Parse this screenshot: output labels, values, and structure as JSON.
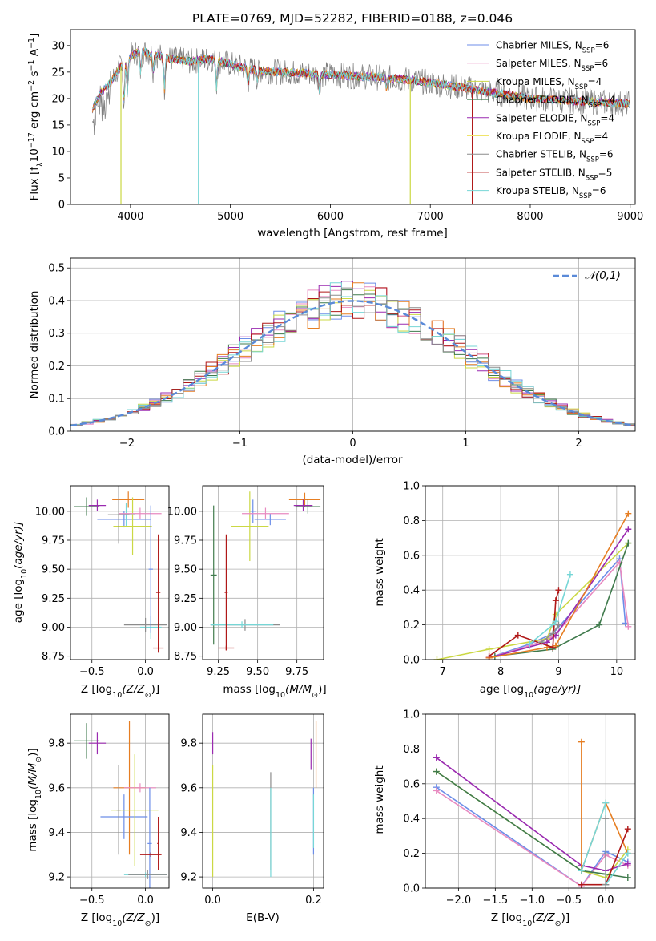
{
  "title": "PLATE=0769, MJD=52282, FIBERID=0188, z=0.046",
  "colors": {
    "Chabrier MILES": "#6c8ee8",
    "Salpeter MILES": "#e88ac0",
    "Kroupa MILES": "#cbd844",
    "Chabrier ELODIE": "#3f7a4c",
    "Salpeter ELODIE": "#9a2ab0",
    "Kroupa ELODIE": "#f0e46a",
    "Chabrier STELIB": "#8c8c8c",
    "Salpeter STELIB": "#b01818",
    "Kroupa STELIB": "#76d6d6",
    "orange": "#e67e22"
  },
  "chart_data": [
    {
      "type": "line",
      "id": "spectrum",
      "title": "PLATE=0769, MJD=52282, FIBERID=0188, z=0.046",
      "xlabel": "wavelength [Angstrom, rest frame]",
      "ylabel_main": "Flux [f",
      "ylabel_sub": "λ",
      "ylabel_rest": "10",
      "ylabel_exp": "−17",
      "ylabel_units": " erg cm",
      "ylabel_exp2": "−2",
      "ylabel_s": " s",
      "ylabel_exp3": "−1",
      "ylabel_A": " A",
      "ylabel_exp4": "−1",
      "ylabel_end": "]",
      "xlim": [
        3400,
        9050
      ],
      "ylim": [
        0,
        33
      ],
      "xticks": [
        "4000",
        "5000",
        "6000",
        "7000",
        "8000",
        "9000"
      ],
      "yticks": [
        "0",
        "5",
        "10",
        "15",
        "20",
        "25",
        "30"
      ],
      "legend": [
        {
          "name": "Chabrier MILES",
          "nssp": "6"
        },
        {
          "name": "Salpeter MILES",
          "nssp": "6"
        },
        {
          "name": "Kroupa MILES",
          "nssp": "4"
        },
        {
          "name": "Chabrier ELODIE",
          "nssp": "4"
        },
        {
          "name": "Salpeter ELODIE",
          "nssp": "4"
        },
        {
          "name": "Kroupa ELODIE",
          "nssp": "4"
        },
        {
          "name": "Chabrier STELIB",
          "nssp": "6"
        },
        {
          "name": "Salpeter STELIB",
          "nssp": "5"
        },
        {
          "name": "Kroupa STELIB",
          "nssp": "6"
        }
      ],
      "legend_prefix": "N",
      "legend_sub": "SSP",
      "legend_placement": "upper right",
      "continuum": [
        [
          3620,
          18
        ],
        [
          3700,
          21
        ],
        [
          3800,
          23
        ],
        [
          3900,
          26
        ],
        [
          4000,
          28
        ],
        [
          4100,
          29
        ],
        [
          4200,
          28.5
        ],
        [
          4400,
          27.5
        ],
        [
          4600,
          27
        ],
        [
          4800,
          27.5
        ],
        [
          5000,
          26.5
        ],
        [
          5200,
          25.5
        ],
        [
          5500,
          25
        ],
        [
          6000,
          24.5
        ],
        [
          6500,
          24
        ],
        [
          6800,
          23.5
        ],
        [
          7000,
          23
        ],
        [
          7500,
          21.5
        ],
        [
          8000,
          20
        ],
        [
          8500,
          19.5
        ],
        [
          8990,
          19
        ]
      ]
    },
    {
      "type": "histogram",
      "id": "residuals",
      "xlabel": "(data-model)/error",
      "ylabel": "Normed distribution",
      "xlim": [
        -2.5,
        2.5
      ],
      "ylim": [
        0,
        0.53
      ],
      "xticks": [
        "−2",
        "−1",
        "0",
        "1",
        "2"
      ],
      "yticks": [
        "0.0",
        "0.1",
        "0.2",
        "0.3",
        "0.4",
        "0.5"
      ],
      "legend": "𝒩(0,1)",
      "legend_placement": "upper right",
      "grid": true
    },
    {
      "type": "scatter",
      "id": "age_vs_Z",
      "xlabel": "Z [log",
      "xlabel_sub": "10",
      "xlabel_rest": "(Z/Z",
      "xlabel_end": ")]",
      "ylabel": "age  [log",
      "ylabel_sub": "10",
      "ylabel_rest": "(age/yr)]",
      "xlim": [
        -0.7,
        0.22
      ],
      "ylim": [
        8.72,
        10.22
      ],
      "xticks": [
        "−0.5",
        "0.0"
      ],
      "yticks": [
        "8.75",
        "9.00",
        "9.25",
        "9.50",
        "9.75",
        "10.00"
      ],
      "grid": true,
      "points": [
        {
          "c": "Chabrier ELODIE",
          "x": -0.55,
          "y": 10.04,
          "xe": 0.12,
          "ye": 0.08
        },
        {
          "c": "Salpeter ELODIE",
          "x": -0.45,
          "y": 10.05,
          "xe": 0.08,
          "ye": 0.05
        },
        {
          "c": "orange",
          "x": -0.16,
          "y": 10.1,
          "xe": 0.15,
          "ye": 0.07
        },
        {
          "c": "Chabrier MILES",
          "x": -0.2,
          "y": 9.93,
          "xe": 0.25,
          "ye": 0.07
        },
        {
          "c": "Kroupa STELIB",
          "x": -0.18,
          "y": 9.97,
          "xe": 0.08,
          "ye": 0.1
        },
        {
          "c": "Kroupa MILES",
          "x": -0.12,
          "y": 9.87,
          "xe": 0.18,
          "ye": 0.25
        },
        {
          "c": "Chabrier STELIB",
          "x": -0.25,
          "y": 9.97,
          "xe": 0.1,
          "ye": 0.25
        },
        {
          "c": "Salpeter MILES",
          "x": -0.05,
          "y": 9.98,
          "xe": 0.2,
          "ye": 0.05
        },
        {
          "c": "Kroupa STELIB",
          "x": 0.05,
          "y": 9.0,
          "xe": 0.1,
          "ye": 0.1
        },
        {
          "c": "Chabrier STELIB",
          "x": 0.0,
          "y": 9.02,
          "xe": 0.2,
          "ye": 0.06
        },
        {
          "c": "Chabrier MILES",
          "x": 0.05,
          "y": 9.5,
          "xe": 0.02,
          "ye": 0.55
        },
        {
          "c": "Salpeter STELIB",
          "x": 0.12,
          "y": 8.82,
          "xe": 0.05,
          "ye": 0.04
        },
        {
          "c": "Salpeter STELIB",
          "x": 0.12,
          "y": 9.3,
          "xe": 0.02,
          "ye": 0.5
        }
      ]
    },
    {
      "type": "scatter",
      "id": "age_vs_mass",
      "xlabel": "mass [log",
      "xlabel_sub": "10",
      "xlabel_rest": "(M/M",
      "xlabel_end": ")]",
      "xlim": [
        9.15,
        9.92
      ],
      "ylim": [
        8.72,
        10.22
      ],
      "xticks": [
        "9.25",
        "9.50",
        "9.75"
      ],
      "yticks": [
        "8.75",
        "9.00",
        "9.25",
        "9.50",
        "9.75",
        "10.00"
      ],
      "grid": true,
      "points": [
        {
          "c": "orange",
          "x": 9.8,
          "y": 10.1,
          "xe": 0.1,
          "ye": 0.06
        },
        {
          "c": "Chabrier ELODIE",
          "x": 9.82,
          "y": 10.04,
          "xe": 0.08,
          "ye": 0.06
        },
        {
          "c": "Salpeter ELODIE",
          "x": 9.79,
          "y": 10.05,
          "xe": 0.06,
          "ye": 0.05
        },
        {
          "c": "Chabrier MILES",
          "x": 9.58,
          "y": 9.93,
          "xe": 0.1,
          "ye": 0.05
        },
        {
          "c": "Chabrier MILES",
          "x": 9.47,
          "y": 10.0,
          "xe": 0.02,
          "ye": 0.1
        },
        {
          "c": "Kroupa MILES",
          "x": 9.45,
          "y": 9.87,
          "xe": 0.12,
          "ye": 0.3
        },
        {
          "c": "Salpeter MILES",
          "x": 9.55,
          "y": 9.98,
          "xe": 0.15,
          "ye": 0.05
        },
        {
          "c": "Chabrier ELODIE",
          "x": 9.22,
          "y": 9.45,
          "xe": 0.02,
          "ye": 0.6
        },
        {
          "c": "Chabrier STELIB",
          "x": 9.42,
          "y": 9.02,
          "xe": 0.22,
          "ye": 0.05
        },
        {
          "c": "Kroupa STELIB",
          "x": 9.4,
          "y": 9.02,
          "xe": 0.2,
          "ye": 0.03
        },
        {
          "c": "Salpeter STELIB",
          "x": 9.3,
          "y": 8.82,
          "xe": 0.05,
          "ye": 0.02
        },
        {
          "c": "Salpeter STELIB",
          "x": 9.3,
          "y": 9.3,
          "xe": 0.01,
          "ye": 0.5
        }
      ]
    },
    {
      "type": "line",
      "id": "massweight_vs_age",
      "xlabel": "age  [log",
      "xlabel_sub": "10",
      "xlabel_rest": "(age/yr)]",
      "ylabel": "mass weight",
      "xlim": [
        6.7,
        10.32
      ],
      "ylim": [
        0,
        1
      ],
      "xticks": [
        "7",
        "8",
        "9",
        "10"
      ],
      "yticks": [
        "0.0",
        "0.2",
        "0.4",
        "0.6",
        "0.8",
        "1.0"
      ],
      "grid": true,
      "series": [
        {
          "c": "Chabrier MILES",
          "x": [
            7.8,
            8.5,
            8.9,
            10.05,
            10.15
          ],
          "y": [
            0.01,
            0.09,
            0.15,
            0.58,
            0.21
          ]
        },
        {
          "c": "Salpeter MILES",
          "x": [
            7.8,
            8.5,
            8.9,
            10.05,
            10.2
          ],
          "y": [
            0.01,
            0.08,
            0.13,
            0.56,
            0.19
          ]
        },
        {
          "c": "Kroupa MILES",
          "x": [
            6.9,
            7.8,
            8.8,
            8.95,
            10.2
          ],
          "y": [
            0.0,
            0.06,
            0.12,
            0.26,
            0.67
          ]
        },
        {
          "c": "Chabrier ELODIE",
          "x": [
            7.9,
            8.9,
            9.7,
            10.2
          ],
          "y": [
            0.02,
            0.06,
            0.2,
            0.67
          ]
        },
        {
          "c": "Salpeter ELODIE",
          "x": [
            7.8,
            8.8,
            8.95,
            10.2
          ],
          "y": [
            0.01,
            0.1,
            0.14,
            0.75
          ]
        },
        {
          "c": "orange",
          "x": [
            7.8,
            8.8,
            8.95,
            10.2
          ],
          "y": [
            0.01,
            0.07,
            0.08,
            0.84
          ]
        },
        {
          "c": "Salpeter STELIB",
          "x": [
            7.8,
            8.3,
            8.9,
            8.95,
            9.0
          ],
          "y": [
            0.02,
            0.14,
            0.07,
            0.34,
            0.4
          ]
        },
        {
          "c": "Kroupa STELIB",
          "x": [
            8.5,
            8.9,
            8.95,
            9.2
          ],
          "y": [
            0.09,
            0.2,
            0.22,
            0.49
          ]
        },
        {
          "c": "Chabrier STELIB",
          "x": [
            8.7,
            8.9,
            9.0
          ],
          "y": [
            0.1,
            0.15,
            0.2
          ]
        }
      ]
    },
    {
      "type": "scatter",
      "id": "mass_vs_Z",
      "xlabel": "Z [log",
      "xlabel_sub": "10",
      "xlabel_rest": "(Z/Z",
      "xlabel_end": ")]",
      "ylabel": "mass [log",
      "ylabel_sub": "10",
      "ylabel_rest": "(M/M",
      "ylabel_end": ")]",
      "xlim": [
        -0.7,
        0.22
      ],
      "ylim": [
        9.15,
        9.93
      ],
      "xticks": [
        "−0.5",
        "0.0"
      ],
      "yticks": [
        "9.2",
        "9.4",
        "9.6",
        "9.8"
      ],
      "grid": true,
      "points": [
        {
          "c": "Chabrier ELODIE",
          "x": -0.55,
          "y": 9.81,
          "xe": 0.12,
          "ye": 0.08
        },
        {
          "c": "Salpeter ELODIE",
          "x": -0.45,
          "y": 9.8,
          "xe": 0.08,
          "ye": 0.05
        },
        {
          "c": "orange",
          "x": -0.15,
          "y": 9.6,
          "xe": 0.15,
          "ye": 0.3
        },
        {
          "c": "Chabrier MILES",
          "x": -0.2,
          "y": 9.47,
          "xe": 0.22,
          "ye": 0.1
        },
        {
          "c": "Kroupa MILES",
          "x": -0.1,
          "y": 9.5,
          "xe": 0.22,
          "ye": 0.25
        },
        {
          "c": "Chabrier STELIB",
          "x": -0.25,
          "y": 9.5,
          "xe": 0.02,
          "ye": 0.2
        },
        {
          "c": "Salpeter MILES",
          "x": -0.05,
          "y": 9.6,
          "xe": 0.15,
          "ye": 0.02
        },
        {
          "c": "Chabrier MILES",
          "x": 0.04,
          "y": 9.35,
          "xe": 0.02,
          "ye": 0.25
        },
        {
          "c": "Kroupa STELIB",
          "x": 0.0,
          "y": 9.21,
          "xe": 0.2,
          "ye": 0.01
        },
        {
          "c": "Chabrier STELIB",
          "x": 0.02,
          "y": 9.21,
          "xe": 0.18,
          "ye": 0.02
        },
        {
          "c": "Salpeter STELIB",
          "x": 0.05,
          "y": 9.3,
          "xe": 0.1,
          "ye": 0.01
        },
        {
          "c": "Salpeter STELIB",
          "x": 0.12,
          "y": 9.35,
          "xe": 0.01,
          "ye": 0.12
        }
      ]
    },
    {
      "type": "scatter",
      "id": "mass_vs_ebv",
      "xlabel": "E(B-V)",
      "xlim": [
        -0.02,
        0.22
      ],
      "ylim": [
        9.15,
        9.93
      ],
      "xticks": [
        "0.0",
        "0.2"
      ],
      "yticks": [
        "9.2",
        "9.4",
        "9.6",
        "9.8"
      ],
      "grid": true,
      "points": [
        {
          "c": "Salpeter ELODIE",
          "x": 0.0,
          "y": 9.8,
          "xe": 0.0,
          "ye": 0.05
        },
        {
          "c": "Kroupa MILES",
          "x": 0.0,
          "y": 9.45,
          "xe": 0.0,
          "ye": 0.25
        },
        {
          "c": "Chabrier STELIB",
          "x": 0.115,
          "y": 9.45,
          "xe": 0.0,
          "ye": 0.22
        },
        {
          "c": "Kroupa STELIB",
          "x": 0.115,
          "y": 9.4,
          "xe": 0.0,
          "ye": 0.2
        },
        {
          "c": "Salpeter ELODIE",
          "x": 0.195,
          "y": 9.75,
          "xe": 0.0,
          "ye": 0.07
        },
        {
          "c": "orange",
          "x": 0.205,
          "y": 9.75,
          "xe": 0.0,
          "ye": 0.15
        },
        {
          "c": "Chabrier MILES",
          "x": 0.2,
          "y": 9.45,
          "xe": 0.0,
          "ye": 0.15
        },
        {
          "c": "Kroupa STELIB",
          "x": 0.2,
          "y": 9.45,
          "xe": 0.0,
          "ye": 0.12
        }
      ]
    },
    {
      "type": "line",
      "id": "massweight_vs_Z",
      "xlabel": "Z [log",
      "xlabel_sub": "10",
      "xlabel_rest": "(Z/Z",
      "xlabel_end": ")]",
      "ylabel": "mass weight",
      "xlim": [
        -2.45,
        0.4
      ],
      "ylim": [
        0,
        1
      ],
      "xticks": [
        "−2.0",
        "−1.5",
        "−1.0",
        "−0.5",
        "0.0"
      ],
      "yticks": [
        "0.0",
        "0.2",
        "0.4",
        "0.6",
        "0.8",
        "1.0"
      ],
      "grid": true,
      "series": [
        {
          "c": "Chabrier MILES",
          "x": [
            -2.3,
            -0.33,
            0.0,
            0.3
          ],
          "y": [
            0.58,
            0.01,
            0.21,
            0.15
          ]
        },
        {
          "c": "Salpeter MILES",
          "x": [
            -2.3,
            -0.33,
            0.0,
            0.3
          ],
          "y": [
            0.56,
            0.01,
            0.19,
            0.13
          ]
        },
        {
          "c": "Kroupa MILES",
          "x": [
            -2.3,
            -0.33,
            0.0,
            0.3
          ],
          "y": [
            0.67,
            0.1,
            0.06,
            0.22
          ]
        },
        {
          "c": "Chabrier ELODIE",
          "x": [
            -2.3,
            -0.33,
            0.0,
            0.3
          ],
          "y": [
            0.67,
            0.1,
            0.08,
            0.06
          ]
        },
        {
          "c": "Salpeter ELODIE",
          "x": [
            -2.3,
            -0.33,
            0.0,
            0.3
          ],
          "y": [
            0.75,
            0.13,
            0.1,
            0.14
          ]
        },
        {
          "c": "orange",
          "x": [
            -0.33,
            -0.33,
            0.0,
            0.3
          ],
          "y": [
            0.84,
            0.1,
            0.49,
            0.2
          ]
        },
        {
          "c": "Salpeter STELIB",
          "x": [
            -0.33,
            0.0,
            0.3
          ],
          "y": [
            0.02,
            0.02,
            0.34
          ]
        },
        {
          "c": "Kroupa STELIB",
          "x": [
            -0.33,
            0.0,
            0.0,
            0.3
          ],
          "y": [
            0.1,
            0.49,
            0.02,
            0.2
          ]
        },
        {
          "c": "Chabrier STELIB",
          "x": [
            0.0,
            0.0
          ],
          "y": [
            0.02,
            0.4
          ]
        }
      ]
    }
  ]
}
